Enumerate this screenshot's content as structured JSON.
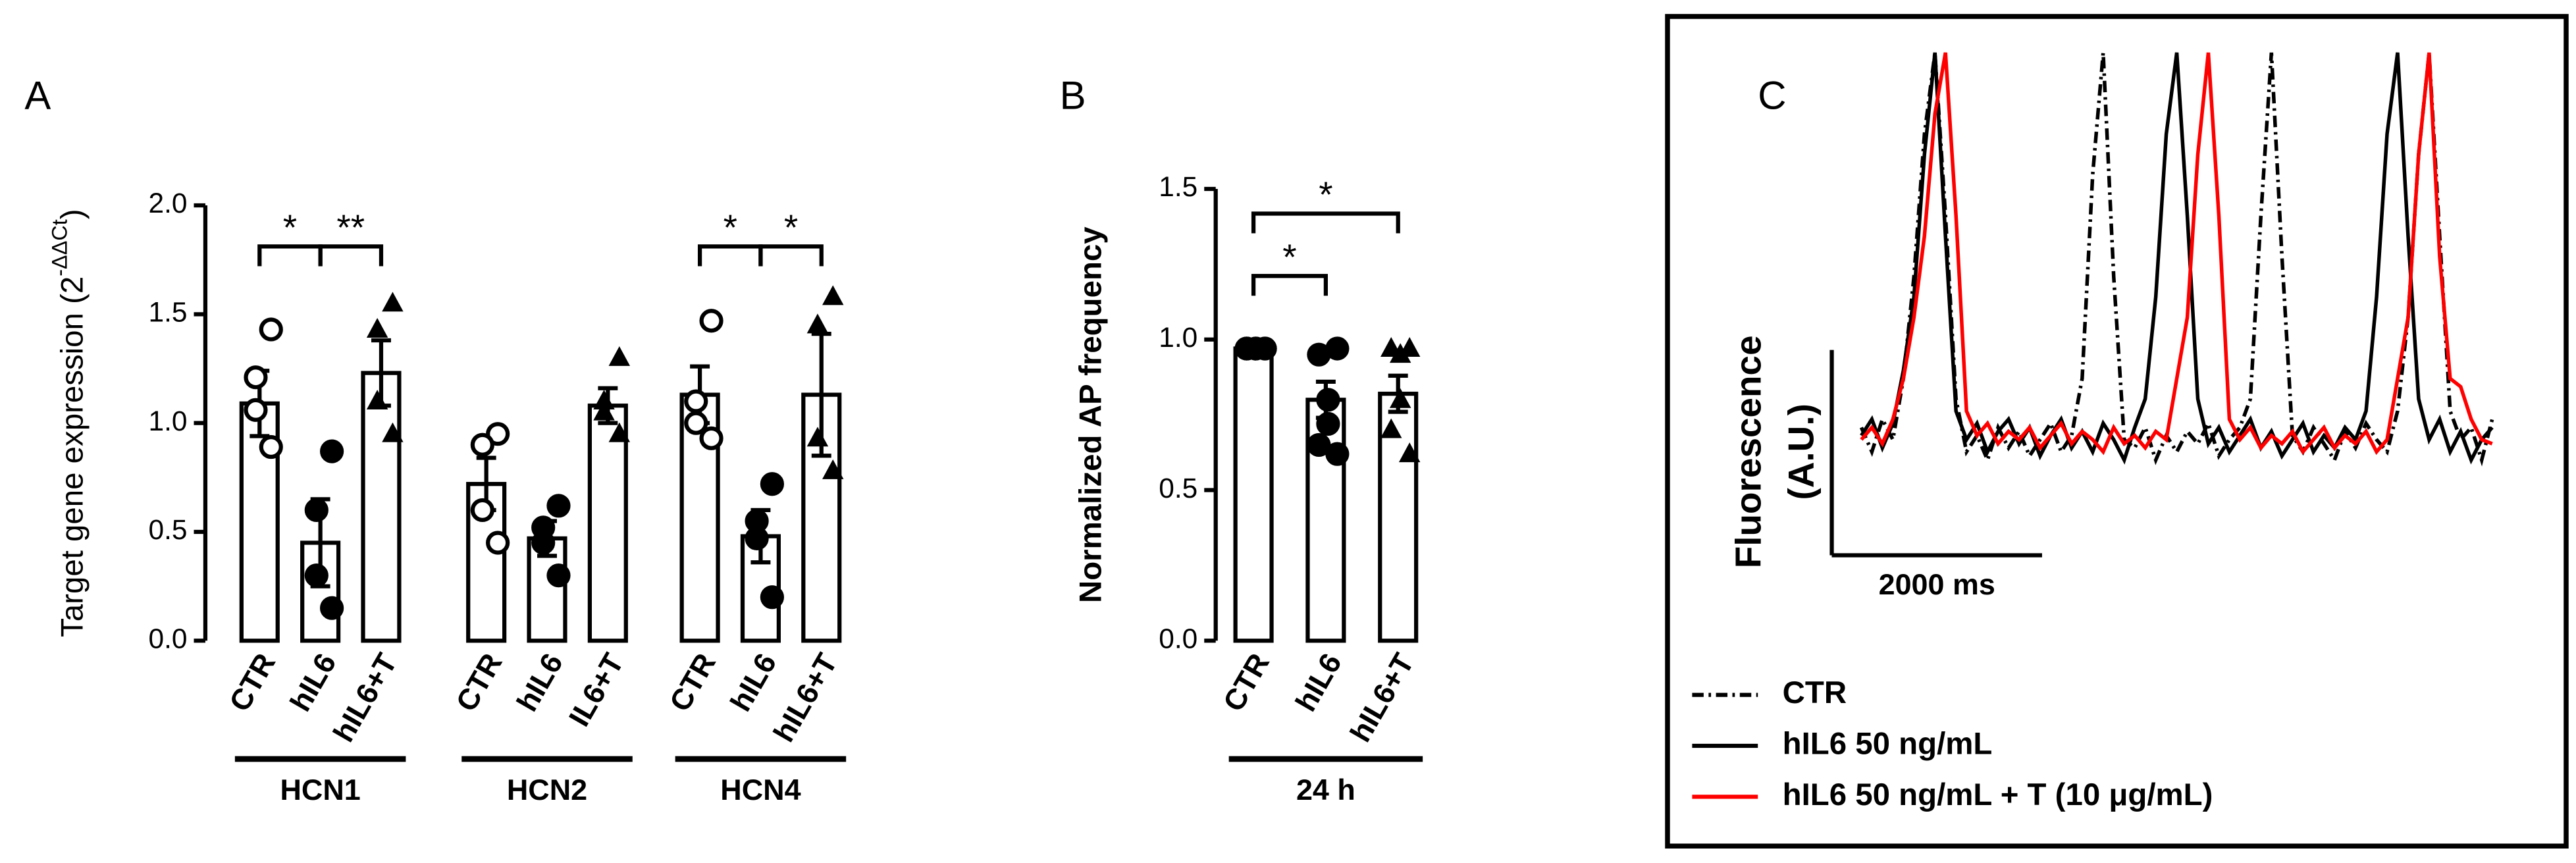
{
  "chart_data": [
    {
      "type": "bar",
      "panel": "A",
      "ylabel": "Target gene expression (2",
      "ylabel_sup": "-ΔΔCt",
      "ylabel_end": ")",
      "ylim": [
        0,
        2.0
      ],
      "yticks": [
        {
          "value": 0,
          "label": "0.0"
        },
        {
          "value": 0.5,
          "label": "0.5"
        },
        {
          "value": 1,
          "label": "1.0"
        },
        {
          "value": 1.5,
          "label": "1.5"
        },
        {
          "value": 2,
          "label": "2.0"
        }
      ],
      "markers": [
        "open-circle",
        "circle",
        "triangle"
      ],
      "groups": [
        {
          "name": "HCN1",
          "categories": [
            "CTR",
            "hIL6",
            "hIL6+T"
          ],
          "values": [
            1.09,
            0.45,
            1.23
          ],
          "errors": [
            0.15,
            0.2,
            0.15
          ],
          "points": [
            [
              1.43,
              1.21,
              1.06,
              0.89
            ],
            [
              0.87,
              0.6,
              0.3,
              0.15
            ],
            [
              1.55,
              1.43,
              1.1,
              0.95
            ]
          ]
        },
        {
          "name": "HCN2",
          "categories": [
            "CTR",
            "hIL6",
            "IL6+T"
          ],
          "values": [
            0.72,
            0.47,
            1.08
          ],
          "errors": [
            0.12,
            0.08,
            0.08
          ],
          "points": [
            [
              0.95,
              0.9,
              0.6,
              0.45
            ],
            [
              0.62,
              0.52,
              0.45,
              0.3
            ],
            [
              1.3,
              1.1,
              1.05,
              0.95
            ]
          ]
        },
        {
          "name": "HCN4",
          "categories": [
            "CTR",
            "hIL6",
            "hIL6+T"
          ],
          "values": [
            1.13,
            0.48,
            1.13
          ],
          "errors": [
            0.13,
            0.12,
            0.28
          ],
          "points": [
            [
              1.47,
              1.1,
              1.0,
              0.93
            ],
            [
              0.72,
              0.55,
              0.47,
              0.2
            ],
            [
              1.58,
              1.45,
              0.93,
              0.78
            ]
          ]
        }
      ],
      "brackets": [
        {
          "group": "HCN1",
          "pair": [
            "CTR",
            "hIL6"
          ],
          "label": "*"
        },
        {
          "group": "HCN1",
          "pair": [
            "hIL6",
            "hIL6+T"
          ],
          "label": "**"
        },
        {
          "group": "HCN4",
          "pair": [
            "CTR",
            "hIL6"
          ],
          "label": "*"
        },
        {
          "group": "HCN4",
          "pair": [
            "hIL6",
            "hIL6+T"
          ],
          "label": "*"
        }
      ]
    },
    {
      "type": "bar",
      "panel": "B",
      "ylabel": "Normalized AP frequency",
      "ylim": [
        0,
        1.5
      ],
      "yticks": [
        {
          "value": 0,
          "label": "0.0"
        },
        {
          "value": 0.5,
          "label": "0.5"
        },
        {
          "value": 1,
          "label": "1.0"
        },
        {
          "value": 1.5,
          "label": "1.5"
        }
      ],
      "markers": [
        "circle",
        "circle",
        "triangle"
      ],
      "groups": [
        {
          "name": "24 h",
          "categories": [
            "CTR",
            "hIL6",
            "hIL6+T"
          ],
          "values": [
            0.97,
            0.8,
            0.82
          ],
          "errors": [
            0,
            0.06,
            0.06
          ],
          "points": [
            [
              0.97,
              0.97,
              0.97,
              0.97,
              0.97,
              0.97
            ],
            [
              0.97,
              0.95,
              0.8,
              0.72,
              0.65,
              0.62
            ],
            [
              0.97,
              0.97,
              0.95,
              0.8,
              0.7,
              0.62
            ]
          ]
        }
      ],
      "brackets": [
        {
          "group": "24 h",
          "pair": [
            "CTR",
            "hIL6"
          ],
          "label": "*"
        },
        {
          "group": "24 h",
          "pair": [
            "CTR",
            "hIL6+T"
          ],
          "label": "*"
        }
      ]
    },
    {
      "type": "line",
      "panel": "C",
      "ylabel": [
        "Fluorescence",
        "(A.U.)"
      ],
      "xscale": {
        "value": 2000,
        "label": "2000 ms"
      },
      "xlim": [
        0,
        6000
      ],
      "ylim": [
        0,
        1
      ],
      "x": [
        0,
        100,
        200,
        300,
        400,
        500,
        600,
        700,
        800,
        900,
        1000,
        1100,
        1200,
        1300,
        1400,
        1500,
        1600,
        1700,
        1800,
        1900,
        2000,
        2100,
        2200,
        2300,
        2400,
        2500,
        2600,
        2700,
        2800,
        2900,
        3000,
        3100,
        3200,
        3300,
        3400,
        3500,
        3600,
        3700,
        3800,
        3900,
        4000,
        4100,
        4200,
        4300,
        4400,
        4500,
        4600,
        4700,
        4800,
        4900,
        5000,
        5100,
        5200,
        5300,
        5400,
        5500,
        5600,
        5700,
        5800,
        5900,
        6000
      ],
      "series": [
        {
          "name": "CTR",
          "color": "#000000",
          "dash": "dashdot",
          "values": [
            0.08,
            0.02,
            0.1,
            0.05,
            0.2,
            0.45,
            0.8,
            1.0,
            0.6,
            0.15,
            0.02,
            0.06,
            0.0,
            0.08,
            0.03,
            0.07,
            0.01,
            0.05,
            0.09,
            0.02,
            0.06,
            0.2,
            0.7,
            1.0,
            0.45,
            0.05,
            0.03,
            0.08,
            0.0,
            0.06,
            0.02,
            0.07,
            0.04,
            0.09,
            0.01,
            0.05,
            0.08,
            0.15,
            0.6,
            1.0,
            0.5,
            0.06,
            0.02,
            0.08,
            0.04,
            0.0,
            0.07,
            0.03,
            0.09,
            0.05,
            0.02,
            0.12,
            0.35,
            0.75,
            1.0,
            0.55,
            0.12,
            0.05,
            0.08,
            0.0,
            0.1
          ]
        },
        {
          "name": "hIL6 50 ng/mL",
          "color": "#000000",
          "dash": "solid",
          "values": [
            0.06,
            0.1,
            0.03,
            0.09,
            0.22,
            0.4,
            0.75,
            1.0,
            0.55,
            0.12,
            0.05,
            0.09,
            0.02,
            0.07,
            0.1,
            0.04,
            0.08,
            0.01,
            0.06,
            0.1,
            0.03,
            0.07,
            0.02,
            0.09,
            0.05,
            0.0,
            0.08,
            0.15,
            0.4,
            0.8,
            1.0,
            0.6,
            0.15,
            0.04,
            0.08,
            0.02,
            0.06,
            0.1,
            0.03,
            0.07,
            0.01,
            0.05,
            0.09,
            0.02,
            0.06,
            0.03,
            0.08,
            0.05,
            0.12,
            0.4,
            0.8,
            1.0,
            0.55,
            0.15,
            0.05,
            0.1,
            0.02,
            0.07,
            0.0,
            0.05,
            0.08
          ]
        },
        {
          "name": "hIL6 50 ng/mL + T (10 μg/mL)",
          "color": "#ff0000",
          "dash": "solid",
          "values": [
            0.05,
            0.08,
            0.04,
            0.1,
            0.2,
            0.35,
            0.55,
            0.85,
            1.0,
            0.6,
            0.12,
            0.06,
            0.09,
            0.04,
            0.07,
            0.05,
            0.08,
            0.03,
            0.06,
            0.09,
            0.04,
            0.07,
            0.05,
            0.02,
            0.08,
            0.04,
            0.06,
            0.03,
            0.07,
            0.05,
            0.2,
            0.35,
            0.75,
            1.0,
            0.6,
            0.1,
            0.05,
            0.08,
            0.03,
            0.06,
            0.04,
            0.07,
            0.02,
            0.05,
            0.08,
            0.03,
            0.06,
            0.04,
            0.07,
            0.02,
            0.05,
            0.2,
            0.35,
            0.75,
            1.0,
            0.5,
            0.2,
            0.18,
            0.1,
            0.05,
            0.04
          ]
        }
      ]
    }
  ]
}
